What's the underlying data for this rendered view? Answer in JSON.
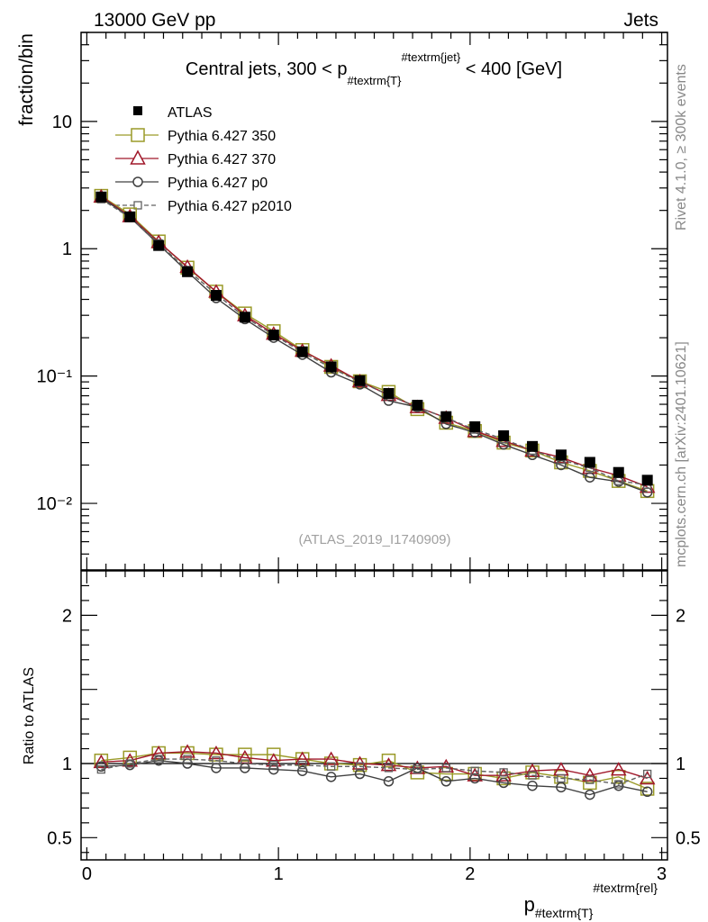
{
  "header": {
    "left": "13000 GeV pp",
    "right": "Jets"
  },
  "side_labels": {
    "rivet": "Rivet 4.1.0, ≥ 300k events",
    "mcplots": "mcplots.cern.ch [arXiv:2401.10621]"
  },
  "watermark": "(ATLAS_2019_I1740909)",
  "chart_data": [
    {
      "panel": "main",
      "type": "line",
      "title": "Central jets, 300 < p#textrm{T}#textrm{jet} < 400 [GeV]",
      "title_parts": {
        "prefix": "Central jets, 300 < p",
        "sub": "#textrm{T}",
        "sup": "#textrm{jet}",
        "suffix": " < 400 [GeV]"
      },
      "ylabel": "fraction/bin",
      "yscale": "log",
      "ylim": [
        0.003,
        50
      ],
      "xlim": [
        -0.03,
        3.03
      ],
      "y_ticks": [
        {
          "value": 10,
          "label": "10"
        },
        {
          "value": 1,
          "label": "1"
        },
        {
          "value": 0.1,
          "label": "10⁻¹"
        },
        {
          "value": 0.01,
          "label": "10⁻²"
        }
      ],
      "x": [
        0.075,
        0.225,
        0.375,
        0.525,
        0.675,
        0.825,
        0.975,
        1.125,
        1.275,
        1.425,
        1.575,
        1.725,
        1.875,
        2.025,
        2.175,
        2.325,
        2.475,
        2.625,
        2.775,
        2.925
      ],
      "legend": [
        "ATLAS",
        "Pythia 6.427 350",
        "Pythia 6.427 370",
        "Pythia 6.427 p0",
        "Pythia 6.427 p2010"
      ],
      "series": [
        {
          "name": "ATLAS",
          "color": "#000000",
          "marker": "filled-square",
          "line": "none",
          "values": [
            2.55,
            1.78,
            1.06,
            0.66,
            0.43,
            0.29,
            0.21,
            0.155,
            0.118,
            0.092,
            0.073,
            0.059,
            0.048,
            0.04,
            0.034,
            0.028,
            0.024,
            0.021,
            0.0175,
            0.0152
          ]
        },
        {
          "name": "Pythia 6.427 350",
          "color": "#9a9a28",
          "marker": "open-square",
          "line": "solid",
          "values": [
            2.6,
            1.86,
            1.14,
            0.71,
            0.46,
            0.31,
            0.225,
            0.16,
            0.118,
            0.091,
            0.075,
            0.055,
            0.043,
            0.037,
            0.03,
            0.026,
            0.021,
            0.018,
            0.015,
            0.0125
          ]
        },
        {
          "name": "Pythia 6.427 370",
          "color": "#a0182a",
          "marker": "open-triangle",
          "line": "solid",
          "values": [
            2.57,
            1.8,
            1.13,
            0.72,
            0.46,
            0.3,
            0.215,
            0.158,
            0.121,
            0.091,
            0.071,
            0.057,
            0.047,
            0.037,
            0.031,
            0.026,
            0.023,
            0.019,
            0.0165,
            0.0135
          ]
        },
        {
          "name": "Pythia 6.427 p0",
          "color": "#404040",
          "marker": "open-circle",
          "line": "solid",
          "values": [
            2.52,
            1.77,
            1.08,
            0.66,
            0.41,
            0.28,
            0.2,
            0.147,
            0.107,
            0.086,
            0.064,
            0.057,
            0.042,
            0.036,
            0.029,
            0.024,
            0.02,
            0.016,
            0.0148,
            0.0122
          ]
        },
        {
          "name": "Pythia 6.427 p2010",
          "color": "#606060",
          "marker": "open-square-small",
          "line": "dashed",
          "values": [
            2.45,
            1.76,
            1.1,
            0.68,
            0.44,
            0.29,
            0.21,
            0.154,
            0.116,
            0.09,
            0.071,
            0.057,
            0.047,
            0.038,
            0.032,
            0.026,
            0.022,
            0.019,
            0.015,
            0.014
          ]
        }
      ]
    },
    {
      "panel": "ratio",
      "type": "line",
      "ylabel": "Ratio to ATLAS",
      "xlabel": "p#textrm{T}#textrm{rel}",
      "xlabel_parts": {
        "main": "p",
        "sub": "#textrm{T}",
        "sup": "#textrm{rel}"
      },
      "ylim": [
        0.35,
        2.3
      ],
      "xlim": [
        -0.03,
        3.03
      ],
      "reference_line": 1,
      "y_ticks": [
        {
          "value": 2,
          "label": "2"
        },
        {
          "value": 1,
          "label": "1"
        },
        {
          "value": 0.5,
          "label": "0.5"
        }
      ],
      "x_ticks": [
        {
          "value": 0,
          "label": "0"
        },
        {
          "value": 1,
          "label": "1"
        },
        {
          "value": 2,
          "label": "2"
        },
        {
          "value": 3,
          "label": "3"
        }
      ],
      "x": [
        0.075,
        0.225,
        0.375,
        0.525,
        0.675,
        0.825,
        0.975,
        1.125,
        1.275,
        1.425,
        1.575,
        1.725,
        1.875,
        2.025,
        2.175,
        2.325,
        2.475,
        2.625,
        2.775,
        2.925
      ],
      "series": [
        {
          "name": "Pythia 6.427 350",
          "color": "#9a9a28",
          "marker": "open-square",
          "line": "solid",
          "values": [
            1.02,
            1.04,
            1.07,
            1.07,
            1.06,
            1.06,
            1.06,
            1.03,
            1.0,
            0.99,
            1.02,
            0.94,
            0.93,
            0.93,
            0.9,
            0.94,
            0.91,
            0.87,
            0.91,
            0.83
          ]
        },
        {
          "name": "Pythia 6.427 370",
          "color": "#a0182a",
          "marker": "open-triangle",
          "line": "solid",
          "values": [
            1.01,
            1.02,
            1.07,
            1.08,
            1.07,
            1.04,
            1.02,
            1.03,
            1.03,
            1.0,
            0.99,
            0.97,
            0.98,
            0.92,
            0.92,
            0.95,
            0.96,
            0.92,
            0.96,
            0.9
          ]
        },
        {
          "name": "Pythia 6.427 p0",
          "color": "#404040",
          "marker": "open-circle",
          "line": "solid",
          "values": [
            0.98,
            0.99,
            1.02,
            1.0,
            0.97,
            0.97,
            0.96,
            0.95,
            0.91,
            0.93,
            0.88,
            0.97,
            0.88,
            0.9,
            0.87,
            0.85,
            0.84,
            0.79,
            0.85,
            0.81
          ]
        },
        {
          "name": "Pythia 6.427 p2010",
          "color": "#606060",
          "marker": "open-square-small",
          "line": "dashed",
          "values": [
            0.96,
            1.0,
            1.03,
            1.03,
            1.02,
            1.0,
            0.99,
            0.99,
            0.98,
            0.98,
            0.97,
            0.96,
            0.97,
            0.95,
            0.94,
            0.92,
            0.9,
            0.89,
            0.86,
            0.93
          ]
        }
      ]
    }
  ]
}
